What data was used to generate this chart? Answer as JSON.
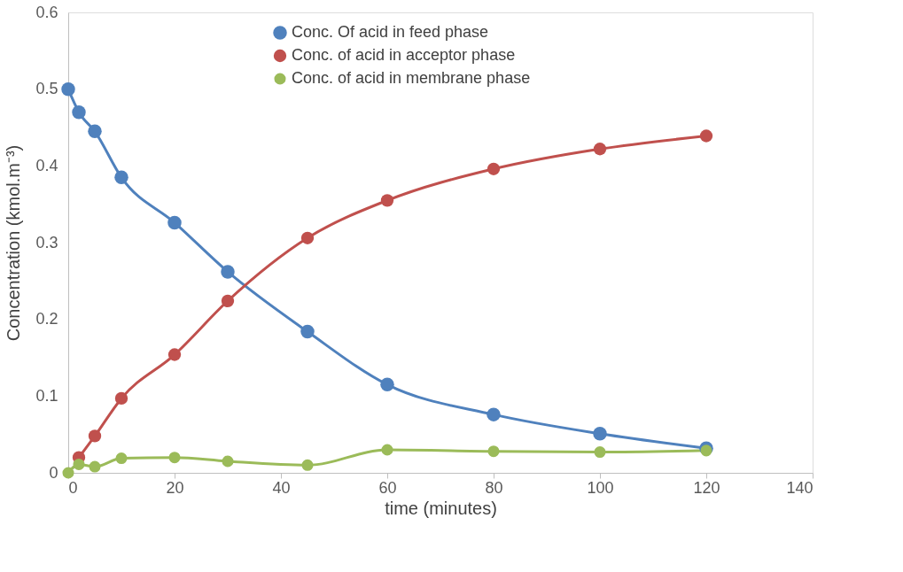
{
  "chart_data": {
    "type": "line",
    "xlabel": "time (minutes)",
    "ylabel": "Concentration (kmol.m⁻³)",
    "x": [
      0,
      2,
      5,
      10,
      20,
      30,
      45,
      60,
      80,
      100,
      120
    ],
    "series": [
      {
        "name": "Conc. Of acid in feed phase",
        "color": "#4f81bd",
        "values": [
          0.5,
          0.47,
          0.445,
          0.385,
          0.326,
          0.262,
          0.184,
          0.115,
          0.076,
          0.051,
          0.032
        ]
      },
      {
        "name": "Conc. of acid in acceptor phase",
        "color": "#c0504d",
        "values": [
          null,
          0.02,
          0.048,
          0.097,
          0.154,
          0.224,
          0.306,
          0.355,
          0.396,
          0.422,
          0.439
        ]
      },
      {
        "name": "Conc. of acid in membrane phase",
        "color": "#9bbb59",
        "values": [
          0,
          0.011,
          0.008,
          0.019,
          0.02,
          0.015,
          0.01,
          0.03,
          0.028,
          0.027,
          0.029
        ]
      }
    ],
    "xlim": [
      0,
      140
    ],
    "xticks": [
      0,
      20,
      40,
      60,
      80,
      100,
      120,
      140
    ],
    "ylim": [
      0,
      0.6
    ],
    "yticks": [
      0,
      0.1,
      0.2,
      0.3,
      0.4,
      0.5,
      0.6
    ],
    "grid": false,
    "legend": "top",
    "marker": "circle",
    "line_style": "solid"
  }
}
